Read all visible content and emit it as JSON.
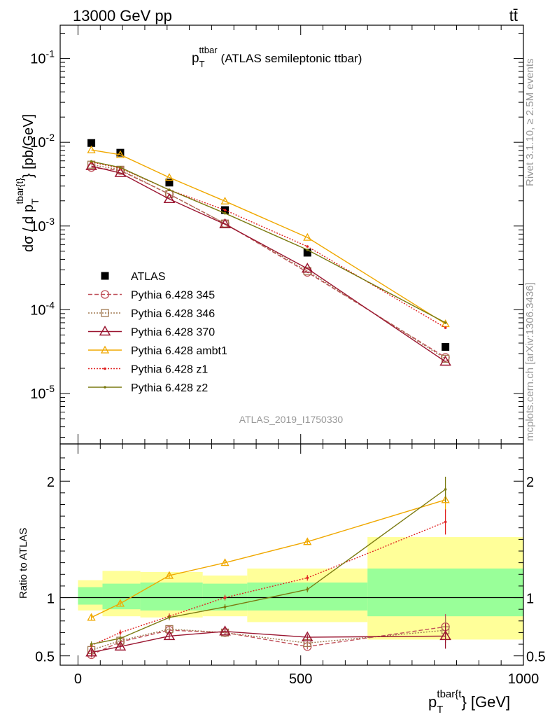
{
  "header": {
    "energy_label": "13000 GeV pp",
    "process_label": "tt̄"
  },
  "side_labels": {
    "rivet": "Rivet 3.1.10, ≥ 2.5M events",
    "mcplots": "mcplots.cern.ch [arXiv:1306.3436]"
  },
  "watermark": "ATLAS_2019_I1750330",
  "colors": {
    "atlas": "#000000",
    "p345": "#c0505a",
    "p346": "#a07850",
    "p370": "#9a1530",
    "ambt1": "#f0a800",
    "z1": "#e02020",
    "z2": "#7a7a10",
    "band_outer": "#ffff99",
    "band_inner": "#99ff99"
  },
  "chart_data": [
    {
      "type": "line",
      "title": "(ATLAS semileptonic ttbar)",
      "title_main": "p",
      "title_sub": "T",
      "title_sup": "ttbar",
      "ylabel_main": "dσ / d p",
      "ylabel_sub": "T",
      "ylabel_sup": "tbar{t}",
      "ylabel_tail": "} [pb/GeV]",
      "yscale": "log",
      "ylim": [
        2.5e-06,
        0.25
      ],
      "xlim": [
        -40,
        1000
      ],
      "ytick_labels": [
        "10^-5",
        "10^-4",
        "10^-3",
        "10^-2",
        "10^-1"
      ],
      "x": [
        30,
        95,
        205,
        330,
        515,
        825
      ],
      "legend_position": "middle-left",
      "series": [
        {
          "name": "ATLAS",
          "key": "atlas",
          "marker": "square",
          "values": [
            0.0098,
            0.0075,
            0.0033,
            0.00155,
            0.00048,
            3.6e-05
          ]
        },
        {
          "name": "Pythia 6.428 345",
          "key": "p345",
          "marker": "circle",
          "dash": "6,3",
          "values": [
            0.005,
            0.0046,
            0.0024,
            0.00107,
            0.00028,
            2.7e-05
          ]
        },
        {
          "name": "Pythia 6.428 346",
          "key": "p346",
          "marker": "open-square",
          "dash": "2,2",
          "values": [
            0.0054,
            0.0047,
            0.0024,
            0.00107,
            0.00029,
            2.6e-05
          ]
        },
        {
          "name": "Pythia 6.428 370",
          "key": "p370",
          "marker": "triangle",
          "dash": "",
          "values": [
            0.0052,
            0.0043,
            0.0021,
            0.00105,
            0.00031,
            2.4e-05
          ]
        },
        {
          "name": "Pythia 6.428 ambt1",
          "key": "ambt1",
          "marker": "small-triangle",
          "dash": "",
          "values": [
            0.0081,
            0.0071,
            0.0038,
            0.00198,
            0.00073,
            6.8e-05
          ]
        },
        {
          "name": "Pythia 6.428 z1",
          "key": "z1",
          "marker": "dot",
          "dash": "2,2",
          "values": [
            0.0058,
            0.0049,
            0.0027,
            0.00155,
            0.00057,
            6.1e-05
          ]
        },
        {
          "name": "Pythia 6.428 z2",
          "key": "z2",
          "marker": "dot",
          "dash": "",
          "values": [
            0.0059,
            0.005,
            0.0027,
            0.00142,
            0.00052,
            7e-05
          ]
        }
      ]
    },
    {
      "type": "line",
      "ylabel": "Ratio to ATLAS",
      "ylim": [
        0.42,
        2.32
      ],
      "xlim": [
        -40,
        1000
      ],
      "ytick_labels": [
        "0.5",
        "1",
        "2"
      ],
      "xtick_labels": [
        "0",
        "500",
        "1000"
      ],
      "xlabel_main": "p",
      "xlabel_sub": "T",
      "xlabel_sup": "tbar{t",
      "xlabel_tail": "} [GeV]",
      "bins": [
        0,
        55,
        140,
        280,
        380,
        650,
        1000
      ],
      "band_outer": [
        [
          0.89,
          1.15
        ],
        [
          0.84,
          1.23
        ],
        [
          0.83,
          1.22
        ],
        [
          0.84,
          1.19
        ],
        [
          0.79,
          1.25
        ],
        [
          0.64,
          1.52
        ]
      ],
      "band_inner": [
        [
          0.94,
          1.09
        ],
        [
          0.9,
          1.12
        ],
        [
          0.89,
          1.13
        ],
        [
          0.89,
          1.12
        ],
        [
          0.89,
          1.13
        ],
        [
          0.84,
          1.25
        ]
      ],
      "x": [
        30,
        95,
        205,
        330,
        515,
        825
      ],
      "series": [
        {
          "key": "p345",
          "values": [
            0.51,
            0.62,
            0.72,
            0.7,
            0.58,
            0.75
          ]
        },
        {
          "key": "p346",
          "values": [
            0.55,
            0.63,
            0.73,
            0.7,
            0.61,
            0.72
          ]
        },
        {
          "key": "p370",
          "values": [
            0.53,
            0.58,
            0.67,
            0.71,
            0.66,
            0.67
          ]
        },
        {
          "key": "ambt1",
          "values": [
            0.83,
            0.95,
            1.19,
            1.3,
            1.48,
            1.84
          ]
        },
        {
          "key": "z1",
          "values": [
            0.59,
            0.7,
            0.84,
            1.0,
            1.17,
            1.65
          ]
        },
        {
          "key": "z2",
          "values": [
            0.6,
            0.65,
            0.83,
            0.92,
            1.07,
            1.93
          ]
        }
      ]
    }
  ]
}
